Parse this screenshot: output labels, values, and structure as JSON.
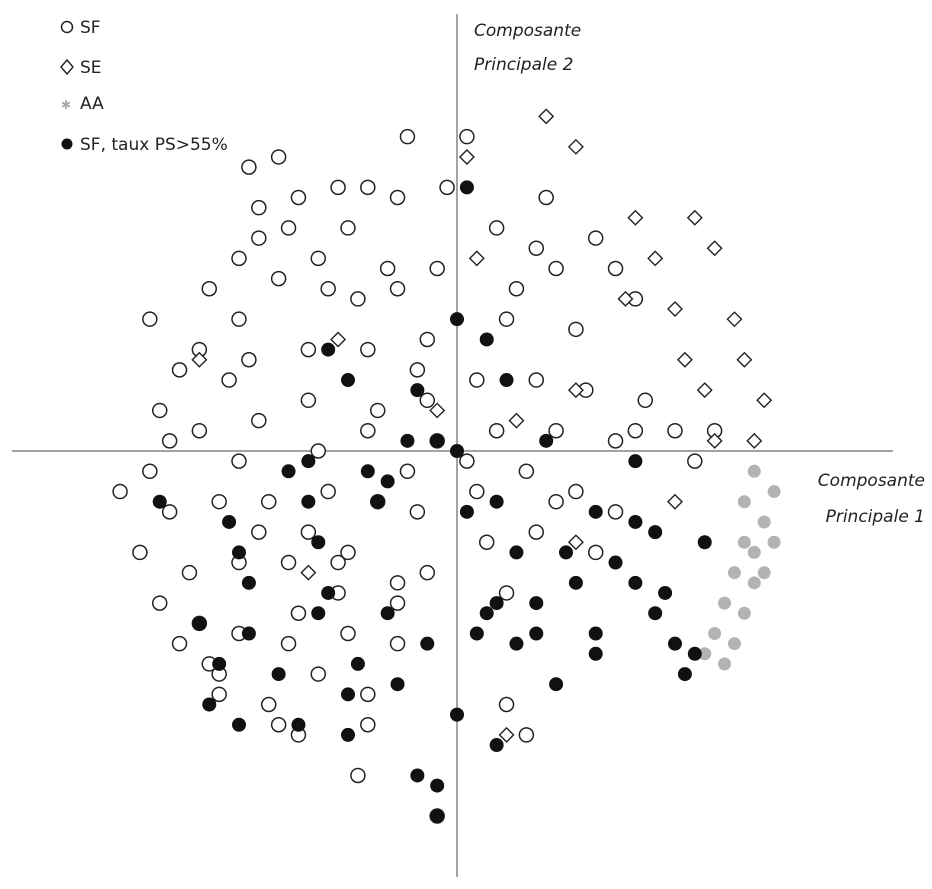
{
  "chart_data": {
    "type": "scatter",
    "title": "",
    "xlabel": [
      "Composante",
      "Principale 1"
    ],
    "ylabel": [
      "Composante",
      "Principale 2"
    ],
    "grid": false,
    "legend_position": "top-left",
    "xlim": [
      -4.4,
      4.4
    ],
    "ylim": [
      -4.3,
      4.3
    ],
    "legend": [
      {
        "marker": "open-circle",
        "label": "SF"
      },
      {
        "marker": "open-diamond",
        "label": "SE"
      },
      {
        "marker": "grey-star",
        "label": "AA"
      },
      {
        "marker": "filled-circle",
        "label": "SF, taux PS>55%"
      }
    ],
    "series": [
      {
        "name": "SF",
        "marker": "open-circle",
        "color": "#222222",
        "points": [
          [
            -0.5,
            3.1
          ],
          [
            0.1,
            3.1
          ],
          [
            -2,
            2.4
          ],
          [
            -2,
            2.1
          ],
          [
            -1.6,
            2.5
          ],
          [
            -1.2,
            2.6
          ],
          [
            -0.9,
            2.6
          ],
          [
            -0.6,
            2.5
          ],
          [
            -2.5,
            1.6
          ],
          [
            -2.2,
            1.3
          ],
          [
            -1.8,
            1.7
          ],
          [
            -1.4,
            1.9
          ],
          [
            -1.0,
            1.5
          ],
          [
            -0.6,
            1.6
          ],
          [
            -0.2,
            1.8
          ],
          [
            0.4,
            2.2
          ],
          [
            0.8,
            2.0
          ],
          [
            1.4,
            2.1
          ],
          [
            1.8,
            1.5
          ],
          [
            1.2,
            1.2
          ],
          [
            0.5,
            1.3
          ],
          [
            -0.3,
            1.1
          ],
          [
            -0.9,
            1.0
          ],
          [
            -1.5,
            1.0
          ],
          [
            -2.3,
            0.7
          ],
          [
            -2.8,
            0.8
          ],
          [
            -3.0,
            0.4
          ],
          [
            -2.6,
            0.2
          ],
          [
            -2.0,
            0.3
          ],
          [
            -1.5,
            0.5
          ],
          [
            -0.8,
            0.4
          ],
          [
            -0.3,
            0.5
          ],
          [
            0.2,
            0.7
          ],
          [
            0.8,
            0.7
          ],
          [
            1.3,
            0.6
          ],
          [
            1.9,
            0.5
          ],
          [
            2.2,
            0.2
          ],
          [
            1.6,
            0.1
          ],
          [
            1.0,
            0.2
          ],
          [
            0.4,
            0.2
          ],
          [
            -0.2,
            0.1
          ],
          [
            -0.9,
            0.2
          ],
          [
            -1.4,
            0.0
          ],
          [
            -2.2,
            -0.1
          ],
          [
            -3.1,
            -0.2
          ],
          [
            -3.4,
            -0.4
          ],
          [
            -2.9,
            -0.6
          ],
          [
            -2.4,
            -0.5
          ],
          [
            -1.9,
            -0.5
          ],
          [
            -1.3,
            -0.4
          ],
          [
            -0.8,
            -0.5
          ],
          [
            -0.4,
            -0.6
          ],
          [
            0.2,
            -0.4
          ],
          [
            0.7,
            -0.2
          ],
          [
            1.2,
            -0.4
          ],
          [
            1.6,
            -0.6
          ],
          [
            0.8,
            -0.8
          ],
          [
            0.3,
            -0.9
          ],
          [
            -0.3,
            -1.2
          ],
          [
            -0.6,
            -1.3
          ],
          [
            -1.2,
            -1.1
          ],
          [
            -1.7,
            -1.1
          ],
          [
            -2.2,
            -1.1
          ],
          [
            -2.7,
            -1.2
          ],
          [
            -3.0,
            -1.5
          ],
          [
            -2.6,
            -1.7
          ],
          [
            -2.2,
            -1.8
          ],
          [
            -1.6,
            -1.6
          ],
          [
            -1.1,
            -1.8
          ],
          [
            -0.6,
            -1.5
          ],
          [
            -0.6,
            -1.9
          ],
          [
            0.5,
            -1.4
          ],
          [
            -2.5,
            -2.1
          ],
          [
            -1.4,
            -2.2
          ],
          [
            -0.9,
            -2.4
          ],
          [
            -2.4,
            -2.4
          ],
          [
            -1.9,
            -2.5
          ],
          [
            -1.6,
            -2.8
          ],
          [
            -0.9,
            -2.7
          ],
          [
            0.5,
            -2.5
          ],
          [
            0.7,
            -2.8
          ],
          [
            -1.8,
            -2.7
          ],
          [
            -1.0,
            -3.2
          ],
          [
            -0.2,
            -3.6
          ],
          [
            -1.1,
            -1.0
          ],
          [
            1.4,
            -1.0
          ],
          [
            2.4,
            -0.1
          ],
          [
            -3.1,
            1.3
          ],
          [
            -1.8,
            2.9
          ],
          [
            -2.1,
            2.8
          ],
          [
            -0.7,
            1.8
          ],
          [
            -1.1,
            2.2
          ],
          [
            -1.7,
            2.2
          ],
          [
            -2.2,
            1.9
          ],
          [
            -2.6,
            1.0
          ],
          [
            -0.4,
            0.8
          ],
          [
            0.6,
            1.6
          ],
          [
            1.0,
            1.8
          ],
          [
            1.6,
            1.8
          ],
          [
            0.9,
            2.5
          ],
          [
            -0.1,
            2.6
          ],
          [
            -1.3,
            1.6
          ],
          [
            -2.1,
            0.9
          ],
          [
            -2.9,
            0.1
          ],
          [
            -2.0,
            -0.8
          ],
          [
            -1.5,
            -0.8
          ],
          [
            -0.5,
            -0.2
          ],
          [
            0.1,
            -0.1
          ],
          [
            1.0,
            -0.5
          ],
          [
            1.8,
            0.2
          ],
          [
            2.6,
            0.2
          ],
          [
            -3.2,
            -1.0
          ],
          [
            -2.8,
            -1.9
          ],
          [
            -2.4,
            -2.2
          ],
          [
            -1.7,
            -1.9
          ],
          [
            -1.2,
            -1.4
          ]
        ]
      },
      {
        "name": "SE",
        "marker": "open-diamond",
        "color": "#222222",
        "points": [
          [
            0.9,
            3.3
          ],
          [
            1.2,
            3.0
          ],
          [
            0.1,
            2.9
          ],
          [
            1.8,
            2.3
          ],
          [
            2.4,
            2.3
          ],
          [
            2.0,
            1.9
          ],
          [
            2.6,
            2.0
          ],
          [
            1.7,
            1.5
          ],
          [
            2.2,
            1.4
          ],
          [
            2.8,
            1.3
          ],
          [
            2.9,
            0.9
          ],
          [
            2.3,
            0.9
          ],
          [
            2.5,
            0.6
          ],
          [
            3.1,
            0.5
          ],
          [
            2.6,
            0.1
          ],
          [
            3.0,
            0.1
          ],
          [
            1.2,
            0.6
          ],
          [
            0.6,
            0.3
          ],
          [
            -0.2,
            0.4
          ],
          [
            -1.2,
            1.1
          ],
          [
            0.2,
            1.9
          ],
          [
            2.2,
            -0.5
          ],
          [
            1.2,
            -0.9
          ],
          [
            0.5,
            -2.8
          ],
          [
            -1.5,
            -1.2
          ],
          [
            -2.6,
            0.9
          ]
        ]
      },
      {
        "name": "AA",
        "marker": "grey-star",
        "color": "#b3b3b3",
        "points": [
          [
            3.0,
            -0.2
          ],
          [
            2.9,
            -0.5
          ],
          [
            2.9,
            -0.9
          ],
          [
            2.8,
            -1.2
          ],
          [
            2.7,
            -1.5
          ],
          [
            2.6,
            -1.8
          ],
          [
            3.1,
            -0.7
          ],
          [
            3.0,
            -1.0
          ],
          [
            3.0,
            -1.3
          ],
          [
            2.9,
            -1.6
          ],
          [
            2.8,
            -1.9
          ],
          [
            3.2,
            -0.4
          ],
          [
            3.2,
            -0.9
          ],
          [
            3.1,
            -1.2
          ],
          [
            2.5,
            -2.0
          ],
          [
            2.7,
            -2.1
          ]
        ]
      },
      {
        "name": "SF, taux PS>55%",
        "marker": "filled-circle",
        "color": "#111111",
        "points": [
          [
            0.1,
            2.6
          ],
          [
            0.0,
            1.3
          ],
          [
            0.3,
            1.1
          ],
          [
            -1.3,
            1.0
          ],
          [
            -1.1,
            0.7
          ],
          [
            -0.4,
            0.6
          ],
          [
            0.5,
            0.7
          ],
          [
            -0.5,
            0.1
          ],
          [
            -0.2,
            0.1
          ],
          [
            0.0,
            0.0
          ],
          [
            0.9,
            0.1
          ],
          [
            -0.9,
            -0.2
          ],
          [
            -1.5,
            -0.1
          ],
          [
            -1.7,
            -0.2
          ],
          [
            -0.7,
            -0.3
          ],
          [
            1.8,
            -0.1
          ],
          [
            -3.0,
            -0.5
          ],
          [
            -2.3,
            -0.7
          ],
          [
            -1.5,
            -0.5
          ],
          [
            -0.8,
            -0.5
          ],
          [
            0.4,
            -0.5
          ],
          [
            1.4,
            -0.6
          ],
          [
            1.8,
            -0.7
          ],
          [
            2.0,
            -0.8
          ],
          [
            -2.2,
            -1.0
          ],
          [
            -1.4,
            -0.9
          ],
          [
            0.1,
            -0.6
          ],
          [
            0.6,
            -1.0
          ],
          [
            1.1,
            -1.0
          ],
          [
            1.6,
            -1.1
          ],
          [
            2.5,
            -0.9
          ],
          [
            -2.1,
            -1.3
          ],
          [
            -1.3,
            -1.4
          ],
          [
            0.4,
            -1.5
          ],
          [
            0.8,
            -1.5
          ],
          [
            1.2,
            -1.3
          ],
          [
            1.8,
            -1.3
          ],
          [
            2.1,
            -1.4
          ],
          [
            -2.6,
            -1.7
          ],
          [
            -2.1,
            -1.8
          ],
          [
            -1.4,
            -1.6
          ],
          [
            -0.7,
            -1.6
          ],
          [
            0.3,
            -1.6
          ],
          [
            0.8,
            -1.8
          ],
          [
            1.4,
            -1.8
          ],
          [
            2.0,
            -1.6
          ],
          [
            2.2,
            -1.9
          ],
          [
            -2.4,
            -2.1
          ],
          [
            -1.8,
            -2.2
          ],
          [
            -1.0,
            -2.1
          ],
          [
            -0.3,
            -1.9
          ],
          [
            0.2,
            -1.8
          ],
          [
            0.6,
            -1.9
          ],
          [
            1.4,
            -2.0
          ],
          [
            2.3,
            -2.2
          ],
          [
            -2.5,
            -2.5
          ],
          [
            -2.2,
            -2.7
          ],
          [
            -1.6,
            -2.7
          ],
          [
            -1.1,
            -2.4
          ],
          [
            -0.6,
            -2.3
          ],
          [
            0.0,
            -2.6
          ],
          [
            0.4,
            -2.9
          ],
          [
            -1.1,
            -2.8
          ],
          [
            -0.4,
            -3.2
          ],
          [
            -0.2,
            -3.6
          ],
          [
            -0.2,
            -3.3
          ],
          [
            2.4,
            -2.0
          ],
          [
            1.0,
            -2.3
          ]
        ]
      }
    ]
  }
}
